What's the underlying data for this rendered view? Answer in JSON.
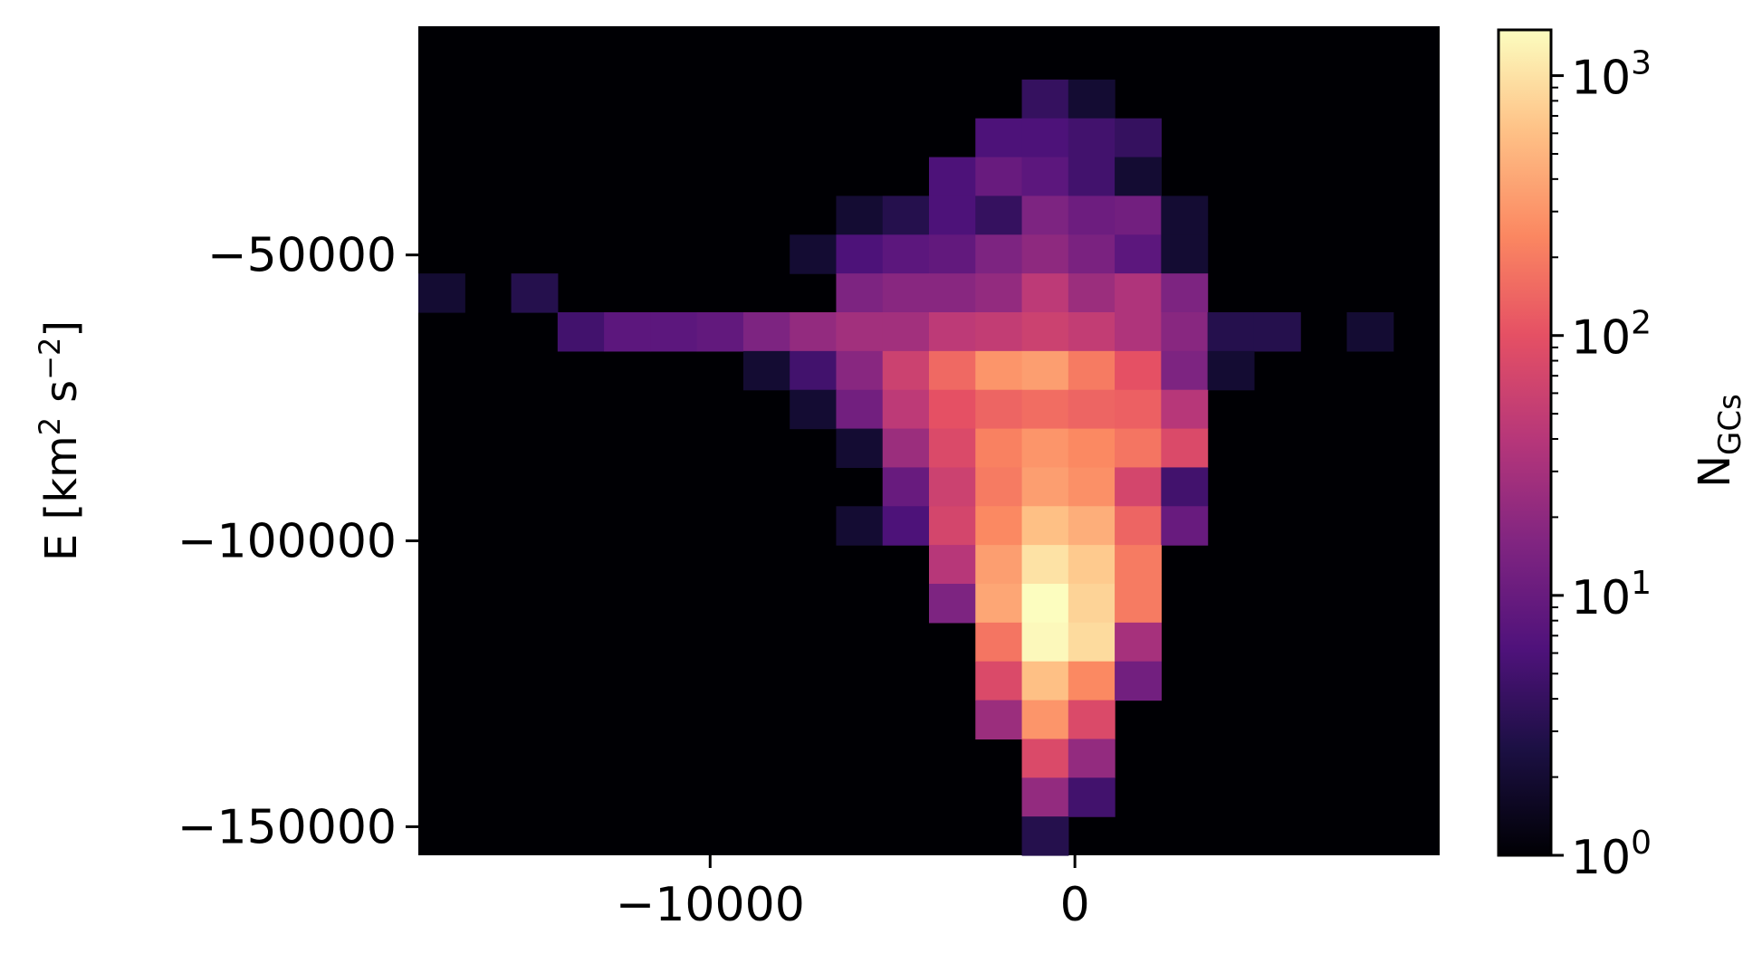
{
  "chart_data": {
    "type": "heatmap",
    "title": "",
    "xlabel": "",
    "ylabel": "E [km",
    "ylabel_unit_tail": "s",
    "ylabel_sup1": "2",
    "ylabel_sup2": "−2",
    "ylabel_close": "]",
    "xlim": [
      -18000,
      10000
    ],
    "ylim": [
      -155000,
      -10000
    ],
    "xticks": [
      {
        "value": -10000,
        "label": "−10000"
      },
      {
        "value": 0,
        "label": "0"
      }
    ],
    "yticks": [
      {
        "value": -50000,
        "label": "−50000"
      },
      {
        "value": -100000,
        "label": "−100000"
      },
      {
        "value": -150000,
        "label": "−150000"
      }
    ],
    "x_bin_count": 22,
    "y_bin_count": 21,
    "background": "#000004",
    "colorbar": {
      "label": "N",
      "label_sub": "GCs",
      "scale": "log",
      "range": [
        1,
        1500
      ],
      "ticks": [
        {
          "value": 1,
          "base": "10",
          "exp": "0"
        },
        {
          "value": 10,
          "base": "10",
          "exp": "1"
        },
        {
          "value": 100,
          "base": "10",
          "exp": "2"
        },
        {
          "value": 1000,
          "base": "10",
          "exp": "3"
        }
      ],
      "colormap": "magma"
    },
    "cells": [
      {
        "col": 13,
        "row": 1,
        "n": 4
      },
      {
        "col": 14,
        "row": 1,
        "n": 2
      },
      {
        "col": 12,
        "row": 2,
        "n": 6
      },
      {
        "col": 13,
        "row": 2,
        "n": 6
      },
      {
        "col": 14,
        "row": 2,
        "n": 5
      },
      {
        "col": 15,
        "row": 2,
        "n": 4
      },
      {
        "col": 11,
        "row": 3,
        "n": 6
      },
      {
        "col": 12,
        "row": 3,
        "n": 10
      },
      {
        "col": 13,
        "row": 3,
        "n": 8
      },
      {
        "col": 14,
        "row": 3,
        "n": 5
      },
      {
        "col": 15,
        "row": 3,
        "n": 2
      },
      {
        "col": 9,
        "row": 4,
        "n": 2
      },
      {
        "col": 10,
        "row": 4,
        "n": 3
      },
      {
        "col": 11,
        "row": 4,
        "n": 6
      },
      {
        "col": 12,
        "row": 4,
        "n": 4
      },
      {
        "col": 13,
        "row": 4,
        "n": 15
      },
      {
        "col": 14,
        "row": 4,
        "n": 11
      },
      {
        "col": 15,
        "row": 4,
        "n": 12
      },
      {
        "col": 16,
        "row": 4,
        "n": 2
      },
      {
        "col": 8,
        "row": 5,
        "n": 2
      },
      {
        "col": 9,
        "row": 5,
        "n": 6
      },
      {
        "col": 10,
        "row": 5,
        "n": 8
      },
      {
        "col": 11,
        "row": 5,
        "n": 9
      },
      {
        "col": 12,
        "row": 5,
        "n": 15
      },
      {
        "col": 13,
        "row": 5,
        "n": 20
      },
      {
        "col": 14,
        "row": 5,
        "n": 14
      },
      {
        "col": 15,
        "row": 5,
        "n": 8
      },
      {
        "col": 16,
        "row": 5,
        "n": 2
      },
      {
        "col": 0,
        "row": 6,
        "n": 2
      },
      {
        "col": 2,
        "row": 6,
        "n": 3
      },
      {
        "col": 9,
        "row": 6,
        "n": 15
      },
      {
        "col": 10,
        "row": 6,
        "n": 18
      },
      {
        "col": 11,
        "row": 6,
        "n": 18
      },
      {
        "col": 12,
        "row": 6,
        "n": 22
      },
      {
        "col": 13,
        "row": 6,
        "n": 45
      },
      {
        "col": 14,
        "row": 6,
        "n": 25
      },
      {
        "col": 15,
        "row": 6,
        "n": 35
      },
      {
        "col": 16,
        "row": 6,
        "n": 15
      },
      {
        "col": 3,
        "row": 7,
        "n": 5
      },
      {
        "col": 4,
        "row": 7,
        "n": 8
      },
      {
        "col": 5,
        "row": 7,
        "n": 8
      },
      {
        "col": 6,
        "row": 7,
        "n": 9
      },
      {
        "col": 7,
        "row": 7,
        "n": 15
      },
      {
        "col": 8,
        "row": 7,
        "n": 22
      },
      {
        "col": 9,
        "row": 7,
        "n": 28
      },
      {
        "col": 10,
        "row": 7,
        "n": 28
      },
      {
        "col": 11,
        "row": 7,
        "n": 45
      },
      {
        "col": 12,
        "row": 7,
        "n": 50
      },
      {
        "col": 13,
        "row": 7,
        "n": 60
      },
      {
        "col": 14,
        "row": 7,
        "n": 50
      },
      {
        "col": 15,
        "row": 7,
        "n": 35
      },
      {
        "col": 16,
        "row": 7,
        "n": 18
      },
      {
        "col": 17,
        "row": 7,
        "n": 3
      },
      {
        "col": 18,
        "row": 7,
        "n": 3
      },
      {
        "col": 20,
        "row": 7,
        "n": 2
      },
      {
        "col": 7,
        "row": 8,
        "n": 2
      },
      {
        "col": 8,
        "row": 8,
        "n": 5
      },
      {
        "col": 9,
        "row": 8,
        "n": 18
      },
      {
        "col": 10,
        "row": 8,
        "n": 60
      },
      {
        "col": 11,
        "row": 8,
        "n": 150
      },
      {
        "col": 12,
        "row": 8,
        "n": 300
      },
      {
        "col": 13,
        "row": 8,
        "n": 350
      },
      {
        "col": 14,
        "row": 8,
        "n": 200
      },
      {
        "col": 15,
        "row": 8,
        "n": 100
      },
      {
        "col": 16,
        "row": 8,
        "n": 15
      },
      {
        "col": 17,
        "row": 8,
        "n": 2
      },
      {
        "col": 8,
        "row": 9,
        "n": 2
      },
      {
        "col": 9,
        "row": 9,
        "n": 12
      },
      {
        "col": 10,
        "row": 9,
        "n": 45
      },
      {
        "col": 11,
        "row": 9,
        "n": 100
      },
      {
        "col": 12,
        "row": 9,
        "n": 140
      },
      {
        "col": 13,
        "row": 9,
        "n": 160
      },
      {
        "col": 14,
        "row": 9,
        "n": 140
      },
      {
        "col": 15,
        "row": 9,
        "n": 130
      },
      {
        "col": 16,
        "row": 9,
        "n": 40
      },
      {
        "col": 9,
        "row": 10,
        "n": 2
      },
      {
        "col": 10,
        "row": 10,
        "n": 25
      },
      {
        "col": 11,
        "row": 10,
        "n": 80
      },
      {
        "col": 12,
        "row": 10,
        "n": 220
      },
      {
        "col": 13,
        "row": 10,
        "n": 300
      },
      {
        "col": 14,
        "row": 10,
        "n": 250
      },
      {
        "col": 15,
        "row": 10,
        "n": 180
      },
      {
        "col": 16,
        "row": 10,
        "n": 80
      },
      {
        "col": 10,
        "row": 11,
        "n": 10
      },
      {
        "col": 11,
        "row": 11,
        "n": 60
      },
      {
        "col": 12,
        "row": 11,
        "n": 200
      },
      {
        "col": 13,
        "row": 11,
        "n": 350
      },
      {
        "col": 14,
        "row": 11,
        "n": 280
      },
      {
        "col": 15,
        "row": 11,
        "n": 70
      },
      {
        "col": 16,
        "row": 11,
        "n": 5
      },
      {
        "col": 9,
        "row": 12,
        "n": 2
      },
      {
        "col": 10,
        "row": 12,
        "n": 6
      },
      {
        "col": 11,
        "row": 12,
        "n": 70
      },
      {
        "col": 12,
        "row": 12,
        "n": 250
      },
      {
        "col": 13,
        "row": 12,
        "n": 600
      },
      {
        "col": 14,
        "row": 12,
        "n": 450
      },
      {
        "col": 15,
        "row": 12,
        "n": 140
      },
      {
        "col": 16,
        "row": 12,
        "n": 10
      },
      {
        "col": 11,
        "row": 13,
        "n": 40
      },
      {
        "col": 12,
        "row": 13,
        "n": 350
      },
      {
        "col": 13,
        "row": 13,
        "n": 1000
      },
      {
        "col": 14,
        "row": 13,
        "n": 700
      },
      {
        "col": 15,
        "row": 13,
        "n": 200
      },
      {
        "col": 11,
        "row": 14,
        "n": 15
      },
      {
        "col": 12,
        "row": 14,
        "n": 400
      },
      {
        "col": 13,
        "row": 14,
        "n": 1500
      },
      {
        "col": 14,
        "row": 14,
        "n": 800
      },
      {
        "col": 15,
        "row": 14,
        "n": 200
      },
      {
        "col": 12,
        "row": 15,
        "n": 180
      },
      {
        "col": 13,
        "row": 15,
        "n": 1400
      },
      {
        "col": 14,
        "row": 15,
        "n": 900
      },
      {
        "col": 15,
        "row": 15,
        "n": 30
      },
      {
        "col": 12,
        "row": 16,
        "n": 80
      },
      {
        "col": 13,
        "row": 16,
        "n": 600
      },
      {
        "col": 14,
        "row": 16,
        "n": 250
      },
      {
        "col": 15,
        "row": 16,
        "n": 12
      },
      {
        "col": 12,
        "row": 17,
        "n": 25
      },
      {
        "col": 13,
        "row": 17,
        "n": 300
      },
      {
        "col": 14,
        "row": 17,
        "n": 80
      },
      {
        "col": 13,
        "row": 18,
        "n": 80
      },
      {
        "col": 14,
        "row": 18,
        "n": 22
      },
      {
        "col": 13,
        "row": 19,
        "n": 22
      },
      {
        "col": 14,
        "row": 19,
        "n": 5
      },
      {
        "col": 13,
        "row": 20,
        "n": 3
      }
    ]
  }
}
